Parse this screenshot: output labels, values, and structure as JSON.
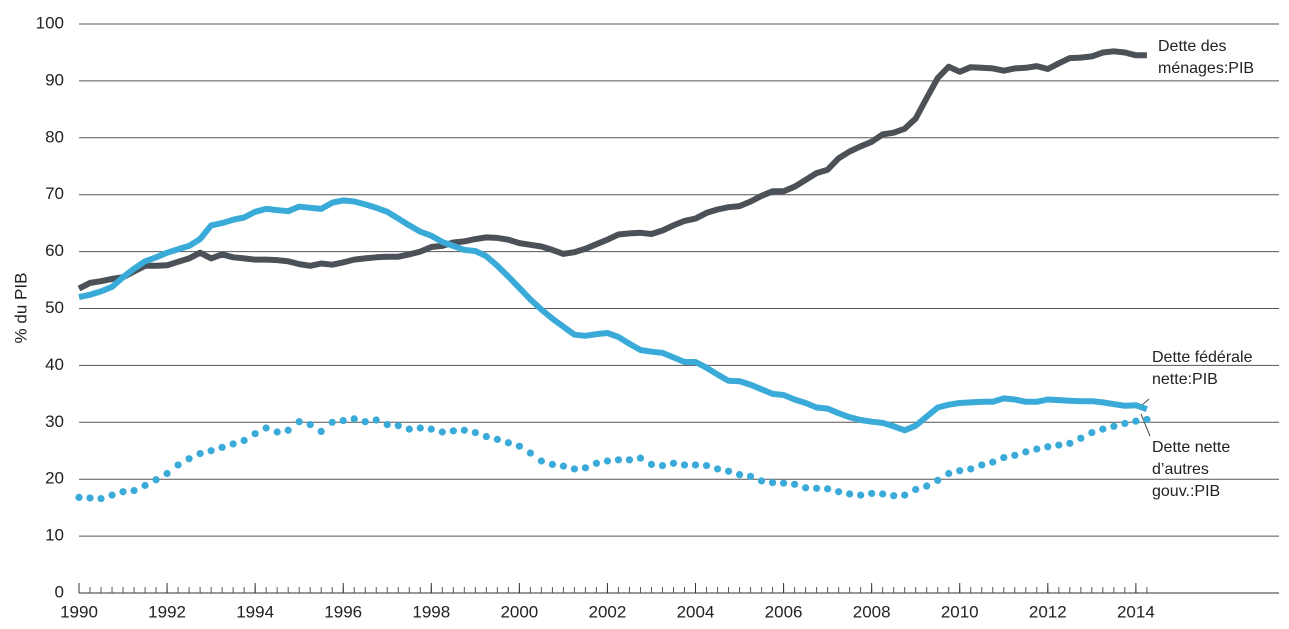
{
  "chart_data": {
    "type": "line",
    "ylabel": "% du PIB",
    "xlim": [
      1990,
      2017.25
    ],
    "xticks": [
      1990,
      1992,
      1994,
      1996,
      1998,
      2000,
      2002,
      2004,
      2006,
      2008,
      2010,
      2012,
      2014
    ],
    "ylim": [
      0,
      100
    ],
    "yticks": [
      0,
      10,
      20,
      30,
      40,
      50,
      60,
      70,
      80,
      90,
      100
    ],
    "grid": true,
    "x": [
      1990,
      1990.25,
      1990.5,
      1990.75,
      1991,
      1991.25,
      1991.5,
      1991.75,
      1992,
      1992.25,
      1992.5,
      1992.75,
      1993,
      1993.25,
      1993.5,
      1993.75,
      1994,
      1994.25,
      1994.5,
      1994.75,
      1995,
      1995.25,
      1995.5,
      1995.75,
      1996,
      1996.25,
      1996.5,
      1996.75,
      1997,
      1997.25,
      1997.5,
      1997.75,
      1998,
      1998.25,
      1998.5,
      1998.75,
      1999,
      1999.25,
      1999.5,
      1999.75,
      2000,
      2000.25,
      2000.5,
      2000.75,
      2001,
      2001.25,
      2001.5,
      2001.75,
      2002,
      2002.25,
      2002.5,
      2002.75,
      2003,
      2003.25,
      2003.5,
      2003.75,
      2004,
      2004.25,
      2004.5,
      2004.75,
      2005,
      2005.25,
      2005.5,
      2005.75,
      2006,
      2006.25,
      2006.5,
      2006.75,
      2007,
      2007.25,
      2007.5,
      2007.75,
      2008,
      2008.25,
      2008.5,
      2008.75,
      2009,
      2009.25,
      2009.5,
      2009.75,
      2010,
      2010.25,
      2010.5,
      2010.75,
      2011,
      2011.25,
      2011.5,
      2011.75,
      2012,
      2012.25,
      2012.5,
      2012.75,
      2013,
      2013.25,
      2013.5,
      2013.75,
      2014,
      2014.25
    ],
    "series": [
      {
        "name": [
          "Dette des",
          "ménages:PIB"
        ],
        "color": "#4b5157",
        "style": "solid",
        "values": [
          53.5,
          54.5,
          54.8,
          55.2,
          55.5,
          56.5,
          57.5,
          57.5,
          57.6,
          58.2,
          58.8,
          59.8,
          58.8,
          59.5,
          59.0,
          58.8,
          58.6,
          58.6,
          58.5,
          58.3,
          57.8,
          57.5,
          57.9,
          57.7,
          58.1,
          58.6,
          58.8,
          59.0,
          59.1,
          59.1,
          59.5,
          60.0,
          60.8,
          61.0,
          61.6,
          61.8,
          62.2,
          62.5,
          62.4,
          62.1,
          61.5,
          61.2,
          60.9,
          60.3,
          59.6,
          59.9,
          60.5,
          61.3,
          62.1,
          63.0,
          63.2,
          63.3,
          63.1,
          63.7,
          64.6,
          65.4,
          65.8,
          66.8,
          67.4,
          67.8,
          68.0,
          68.8,
          69.8,
          70.6,
          70.6,
          71.4,
          72.6,
          73.8,
          74.4,
          76.4,
          77.6,
          78.5,
          79.3,
          80.6,
          80.9,
          81.6,
          83.4,
          87.0,
          90.5,
          92.5,
          91.6,
          92.4,
          92.3,
          92.2,
          91.8,
          92.2,
          92.3,
          92.6,
          92.1,
          93.1,
          94.0,
          94.1,
          94.3,
          95.0,
          95.2,
          95.0,
          94.5,
          94.5
        ]
      },
      {
        "name": [
          "Dette fédérale",
          "nette:PIB"
        ],
        "color": "#3aabd9",
        "style": "solid",
        "values": [
          52.0,
          52.4,
          53.0,
          53.8,
          55.5,
          57.0,
          58.3,
          59.0,
          59.8,
          60.4,
          61.0,
          62.2,
          64.6,
          65.0,
          65.6,
          66.0,
          67.0,
          67.5,
          67.3,
          67.1,
          67.9,
          67.7,
          67.5,
          68.6,
          69.0,
          68.8,
          68.3,
          67.7,
          67.0,
          65.8,
          64.6,
          63.5,
          62.8,
          61.7,
          61.0,
          60.3,
          60.1,
          59.2,
          57.5,
          55.6,
          53.6,
          51.6,
          49.8,
          48.2,
          46.8,
          45.4,
          45.2,
          45.5,
          45.7,
          45.0,
          43.8,
          42.7,
          42.4,
          42.2,
          41.4,
          40.6,
          40.6,
          39.6,
          38.4,
          37.3,
          37.2,
          36.6,
          35.8,
          35.0,
          34.8,
          34.0,
          33.4,
          32.6,
          32.4,
          31.6,
          30.9,
          30.4,
          30.1,
          29.9,
          29.3,
          28.6,
          29.4,
          31.0,
          32.6,
          33.1,
          33.4,
          33.5,
          33.6,
          33.6,
          34.2,
          34.0,
          33.6,
          33.6,
          34.0,
          33.9,
          33.8,
          33.7,
          33.7,
          33.5,
          33.2,
          32.9,
          33.0,
          32.3
        ]
      },
      {
        "name": [
          "Dette nette",
          "d’autres",
          "gouv.:PIB"
        ],
        "color": "#3aabd9",
        "style": "dotted",
        "values": [
          16.8,
          16.7,
          16.6,
          17.2,
          17.8,
          18.0,
          18.9,
          19.9,
          21.0,
          22.5,
          23.6,
          24.5,
          25.0,
          25.6,
          26.2,
          26.8,
          28.0,
          29.0,
          28.3,
          28.6,
          30.1,
          29.6,
          28.4,
          30.0,
          30.3,
          30.6,
          30.1,
          30.4,
          29.6,
          29.4,
          28.8,
          29.0,
          28.8,
          28.3,
          28.5,
          28.6,
          28.2,
          27.5,
          27.0,
          26.4,
          25.8,
          24.6,
          23.2,
          22.6,
          22.3,
          21.8,
          22.0,
          22.8,
          23.2,
          23.4,
          23.4,
          23.7,
          22.6,
          22.4,
          22.8,
          22.5,
          22.5,
          22.4,
          21.8,
          21.4,
          20.8,
          20.5,
          19.7,
          19.4,
          19.3,
          19.1,
          18.5,
          18.4,
          18.3,
          17.8,
          17.4,
          17.2,
          17.5,
          17.4,
          17.1,
          17.2,
          18.2,
          18.8,
          19.8,
          21.0,
          21.5,
          21.8,
          22.5,
          23.0,
          23.8,
          24.2,
          24.8,
          25.3,
          25.7,
          26.0,
          26.3,
          27.2,
          28.2,
          28.8,
          29.3,
          29.8,
          30.2,
          30.5
        ]
      }
    ]
  }
}
